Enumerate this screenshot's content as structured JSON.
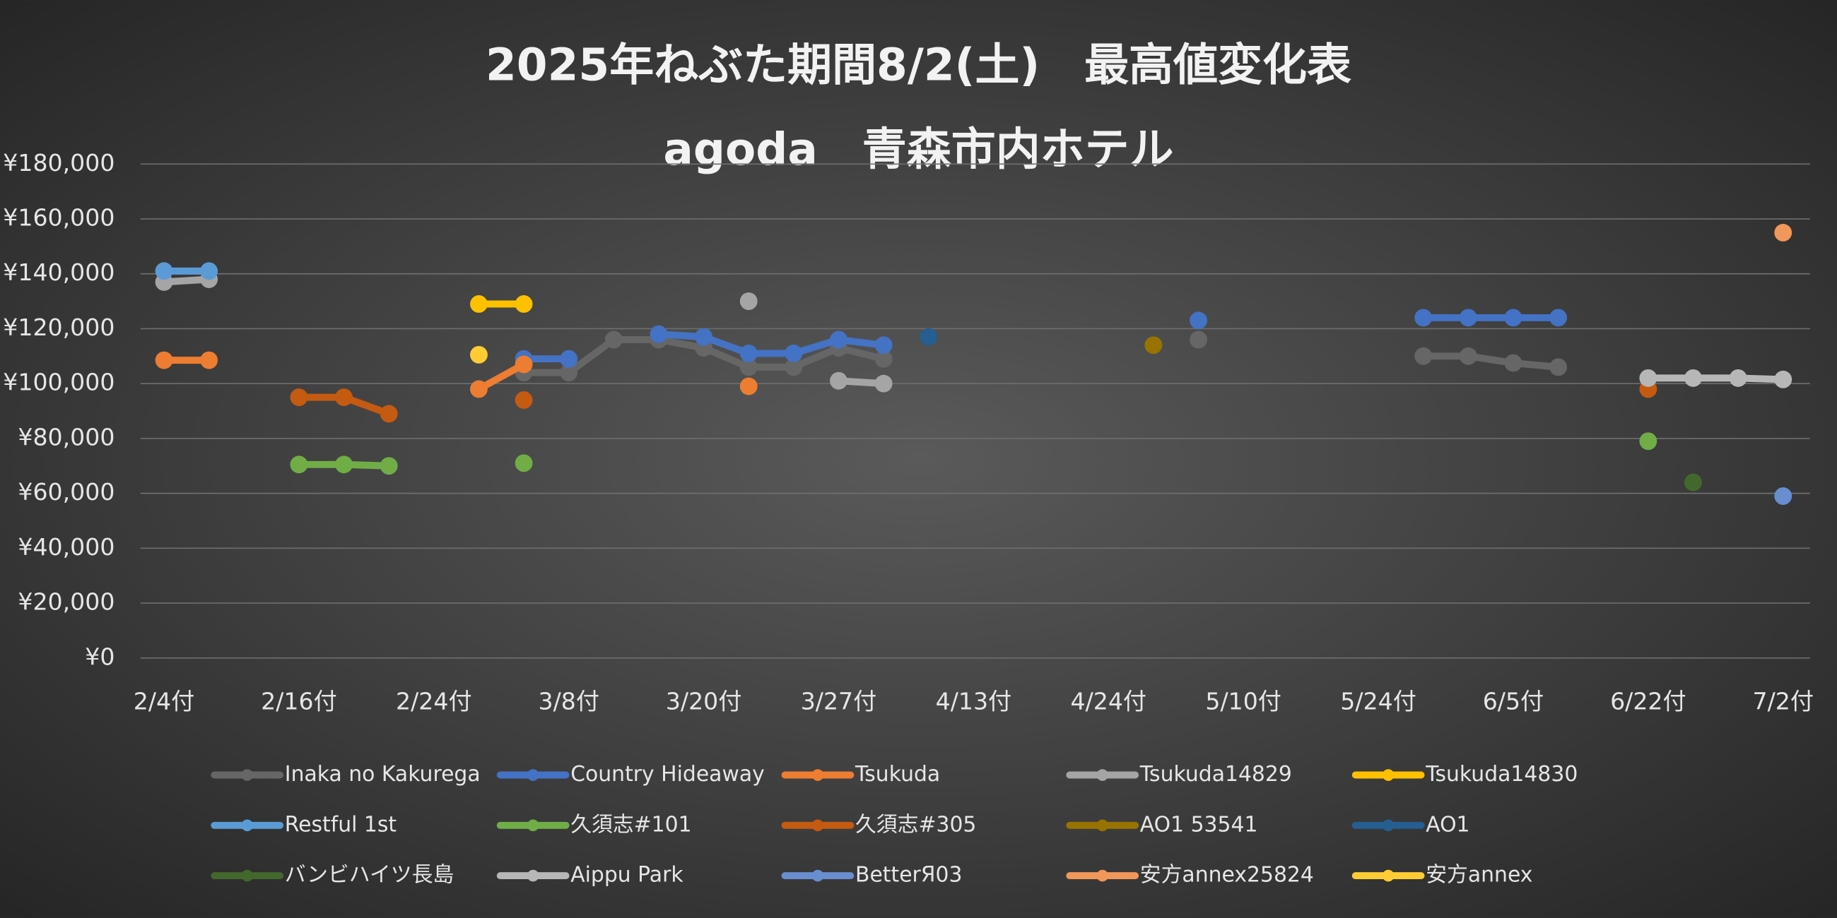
{
  "chart_data": {
    "type": "line",
    "title": "2025年ねぶた期間8/2(土)　最高値変化表",
    "subtitle": "agoda　青森市内ホテル",
    "categories": [
      "2/4付",
      null,
      null,
      "2/16付",
      null,
      null,
      "2/24付",
      null,
      null,
      "3/8付",
      null,
      null,
      "3/20付",
      null,
      null,
      "3/27付",
      null,
      null,
      "4/13付",
      null,
      null,
      "4/24付",
      null,
      null,
      "5/10付",
      null,
      null,
      "5/24付",
      null,
      null,
      "6/5付",
      null,
      null,
      "6/22付",
      null,
      null,
      "7/2付"
    ],
    "ylim": [
      0,
      180000
    ],
    "yticks": [
      {
        "value": 0,
        "label": "¥0"
      },
      {
        "value": 20000,
        "label": "¥20,000"
      },
      {
        "value": 40000,
        "label": "¥40,000"
      },
      {
        "value": 60000,
        "label": "¥60,000"
      },
      {
        "value": 80000,
        "label": "¥80,000"
      },
      {
        "value": 100000,
        "label": "¥100,000"
      },
      {
        "value": 120000,
        "label": "¥120,000"
      },
      {
        "value": 140000,
        "label": "¥140,000"
      },
      {
        "value": 160000,
        "label": "¥160,000"
      },
      {
        "value": 180000,
        "label": "¥180,000"
      }
    ],
    "grid": true,
    "legend": "bottom",
    "series": [
      {
        "name": "Inaka no Kakurega",
        "color": "#666666",
        "values": [
          null,
          null,
          null,
          null,
          null,
          null,
          null,
          null,
          104000,
          104000,
          116000,
          116000,
          113000,
          106000,
          106000,
          113000,
          109000,
          null,
          null,
          null,
          null,
          null,
          null,
          116000,
          null,
          null,
          null,
          null,
          110000,
          110000,
          107500,
          106000,
          null,
          null,
          null,
          null,
          null
        ]
      },
      {
        "name": "Country Hideaway",
        "color": "#4472c4",
        "values": [
          null,
          null,
          null,
          null,
          null,
          null,
          null,
          null,
          109000,
          109000,
          null,
          118000,
          117000,
          111000,
          111000,
          116000,
          114000,
          null,
          null,
          null,
          null,
          null,
          null,
          123000,
          null,
          null,
          null,
          null,
          124000,
          124000,
          124000,
          124000,
          null,
          null,
          null,
          null,
          null
        ]
      },
      {
        "name": " Tsukuda",
        "color": "#ed7d31",
        "values": [
          108500,
          108500,
          null,
          null,
          null,
          null,
          null,
          98000,
          107000,
          null,
          null,
          null,
          null,
          99000,
          null,
          null,
          null,
          null,
          null,
          null,
          null,
          null,
          null,
          null,
          null,
          null,
          null,
          null,
          null,
          null,
          null,
          null,
          null,
          null,
          null,
          null,
          null
        ]
      },
      {
        "name": "Tsukuda14829",
        "color": "#a5a5a5",
        "values": [
          137000,
          138000,
          null,
          null,
          null,
          null,
          null,
          null,
          null,
          null,
          null,
          null,
          null,
          130000,
          null,
          101000,
          100000,
          null,
          null,
          null,
          null,
          null,
          null,
          null,
          null,
          null,
          null,
          null,
          null,
          null,
          null,
          null,
          null,
          null,
          null,
          null,
          null
        ]
      },
      {
        "name": "Tsukuda14830",
        "color": "#ffc000",
        "values": [
          null,
          null,
          null,
          null,
          null,
          null,
          null,
          129000,
          129000,
          null,
          null,
          null,
          null,
          null,
          null,
          null,
          null,
          null,
          null,
          null,
          null,
          null,
          null,
          null,
          null,
          null,
          null,
          null,
          null,
          null,
          null,
          null,
          null,
          null,
          null,
          null,
          null
        ]
      },
      {
        "name": "Restful 1st",
        "color": "#5b9bd5",
        "values": [
          141000,
          141000,
          null,
          null,
          null,
          null,
          null,
          null,
          null,
          null,
          null,
          null,
          null,
          null,
          null,
          null,
          null,
          null,
          null,
          null,
          null,
          null,
          null,
          null,
          null,
          null,
          null,
          null,
          null,
          null,
          null,
          null,
          null,
          null,
          null,
          null,
          null
        ]
      },
      {
        "name": "久須志#101",
        "color": "#70ad47",
        "values": [
          null,
          null,
          null,
          70500,
          70500,
          70000,
          null,
          null,
          71000,
          null,
          null,
          null,
          null,
          null,
          null,
          null,
          null,
          null,
          null,
          null,
          null,
          null,
          null,
          null,
          null,
          null,
          null,
          null,
          null,
          null,
          null,
          null,
          null,
          79000,
          null,
          null,
          null
        ]
      },
      {
        "name": "久須志#305",
        "color": "#c55a11",
        "values": [
          null,
          null,
          null,
          95000,
          95000,
          89000,
          null,
          null,
          94000,
          null,
          null,
          null,
          null,
          null,
          null,
          null,
          null,
          null,
          null,
          null,
          null,
          null,
          null,
          null,
          null,
          null,
          null,
          null,
          null,
          null,
          null,
          null,
          null,
          98000,
          null,
          null,
          null
        ]
      },
      {
        "name": "AO1 53541",
        "color": "#997300",
        "values": [
          null,
          null,
          null,
          null,
          null,
          null,
          null,
          null,
          null,
          null,
          null,
          null,
          null,
          null,
          null,
          null,
          null,
          null,
          null,
          null,
          null,
          null,
          114000,
          null,
          null,
          null,
          null,
          null,
          null,
          null,
          null,
          null,
          null,
          null,
          null,
          null,
          null
        ]
      },
      {
        "name": "AO1",
        "color": "#255e91",
        "values": [
          null,
          null,
          null,
          null,
          null,
          null,
          null,
          null,
          null,
          null,
          null,
          null,
          null,
          null,
          null,
          null,
          null,
          117000,
          null,
          null,
          null,
          null,
          null,
          null,
          null,
          null,
          null,
          null,
          null,
          null,
          null,
          null,
          null,
          null,
          null,
          null,
          null
        ]
      },
      {
        "name": "バンビハイツ長島",
        "color": "#43682b",
        "values": [
          null,
          null,
          null,
          null,
          null,
          null,
          null,
          null,
          null,
          null,
          null,
          null,
          null,
          null,
          null,
          null,
          null,
          null,
          null,
          null,
          null,
          null,
          null,
          null,
          null,
          null,
          null,
          null,
          null,
          null,
          null,
          null,
          null,
          null,
          64000,
          null,
          null
        ]
      },
      {
        "name": "Aippu Park",
        "color": "#b7b7b7",
        "values": [
          null,
          null,
          null,
          null,
          null,
          null,
          null,
          null,
          null,
          null,
          null,
          null,
          null,
          null,
          null,
          null,
          null,
          null,
          null,
          null,
          null,
          null,
          null,
          null,
          null,
          null,
          null,
          null,
          null,
          null,
          null,
          null,
          null,
          102000,
          102000,
          102000,
          101500
        ]
      },
      {
        "name": "BetterЯ03",
        "color": "#698ed0",
        "values": [
          null,
          null,
          null,
          null,
          null,
          null,
          null,
          null,
          null,
          null,
          null,
          null,
          null,
          null,
          null,
          null,
          null,
          null,
          null,
          null,
          null,
          null,
          null,
          null,
          null,
          null,
          null,
          null,
          null,
          null,
          null,
          null,
          null,
          null,
          null,
          null,
          59000
        ]
      },
      {
        "name": "安方annex25824",
        "color": "#f1975a",
        "values": [
          null,
          null,
          null,
          null,
          null,
          null,
          null,
          null,
          null,
          null,
          null,
          null,
          null,
          null,
          null,
          null,
          null,
          null,
          null,
          null,
          null,
          null,
          null,
          null,
          null,
          null,
          null,
          null,
          null,
          null,
          null,
          null,
          null,
          null,
          null,
          null,
          155000
        ]
      },
      {
        "name": "安方annex",
        "color": "#ffcd33",
        "values": [
          null,
          null,
          null,
          null,
          null,
          null,
          null,
          110500,
          null,
          null,
          null,
          null,
          null,
          null,
          null,
          null,
          null,
          null,
          null,
          null,
          null,
          null,
          null,
          null,
          null,
          null,
          null,
          null,
          null,
          null,
          null,
          null,
          null,
          null,
          null,
          null,
          null
        ]
      }
    ]
  }
}
